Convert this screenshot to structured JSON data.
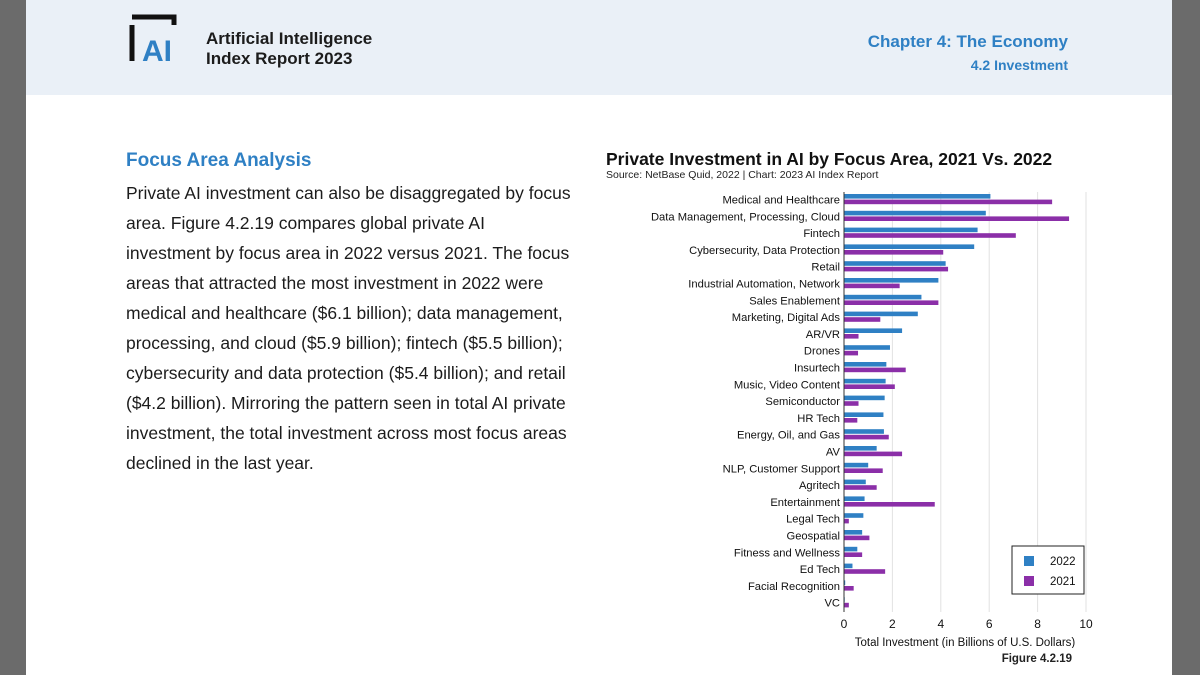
{
  "header": {
    "logo_text": "AI",
    "report_title_line1": "Artificial Intelligence",
    "report_title_line2": "Index Report 2023",
    "chapter": "Chapter 4: The Economy",
    "section": "4.2 Investment"
  },
  "main": {
    "heading": "Focus Area Analysis",
    "paragraph": "Private AI investment can also be disaggregated by focus area. Figure 4.2.19 compares global private AI investment by focus area in 2022 versus 2021. The focus areas that attracted the most investment in 2022 were medical and healthcare ($6.1 billion); data management, processing, and cloud ($5.9 billion); fintech ($5.5 billion); cybersecurity and data protection ($5.4 billion); and retail ($4.2 billion). Mirroring the pattern seen in total AI private investment, the total investment across most focus areas declined in the last year.",
    "figure_label": "Figure 4.2.19"
  },
  "chart_data": {
    "type": "bar",
    "orientation": "horizontal",
    "title": "Private Investment in AI by Focus Area, 2021 Vs. 2022",
    "source": "Source: NetBase Quid, 2022 | Chart: 2023 AI Index Report",
    "xlabel": "Total Investment (in Billions of U.S. Dollars)",
    "xlim": [
      0,
      10
    ],
    "xticks": [
      0,
      2,
      4,
      6,
      8,
      10
    ],
    "grid": true,
    "legend_position": "bottom-right",
    "categories": [
      "Medical and Healthcare",
      "Data Management, Processing, Cloud",
      "Fintech",
      "Cybersecurity, Data Protection",
      "Retail",
      "Industrial Automation, Network",
      "Sales Enablement",
      "Marketing, Digital Ads",
      "AR/VR",
      "Drones",
      "Insurtech",
      "Music, Video Content",
      "Semiconductor",
      "HR Tech",
      "Energy, Oil, and Gas",
      "AV",
      "NLP, Customer Support",
      "Agritech",
      "Entertainment",
      "Legal Tech",
      "Geospatial",
      "Fitness and Wellness",
      "Ed Tech",
      "Facial Recognition",
      "VC"
    ],
    "series": [
      {
        "name": "2022",
        "color": "#2f80c4",
        "values": [
          6.05,
          5.86,
          5.52,
          5.38,
          4.2,
          3.9,
          3.2,
          3.05,
          2.4,
          1.9,
          1.75,
          1.72,
          1.68,
          1.63,
          1.65,
          1.35,
          1.0,
          0.9,
          0.85,
          0.8,
          0.75,
          0.55,
          0.35,
          0.05,
          0.03
        ]
      },
      {
        "name": "2021",
        "color": "#8b2fa8",
        "values": [
          8.6,
          9.3,
          7.1,
          4.1,
          4.3,
          2.3,
          3.9,
          1.5,
          0.6,
          0.58,
          2.55,
          2.1,
          0.6,
          0.55,
          1.85,
          2.4,
          1.6,
          1.35,
          3.75,
          0.2,
          1.05,
          0.75,
          1.7,
          0.4,
          0.2
        ]
      }
    ]
  }
}
